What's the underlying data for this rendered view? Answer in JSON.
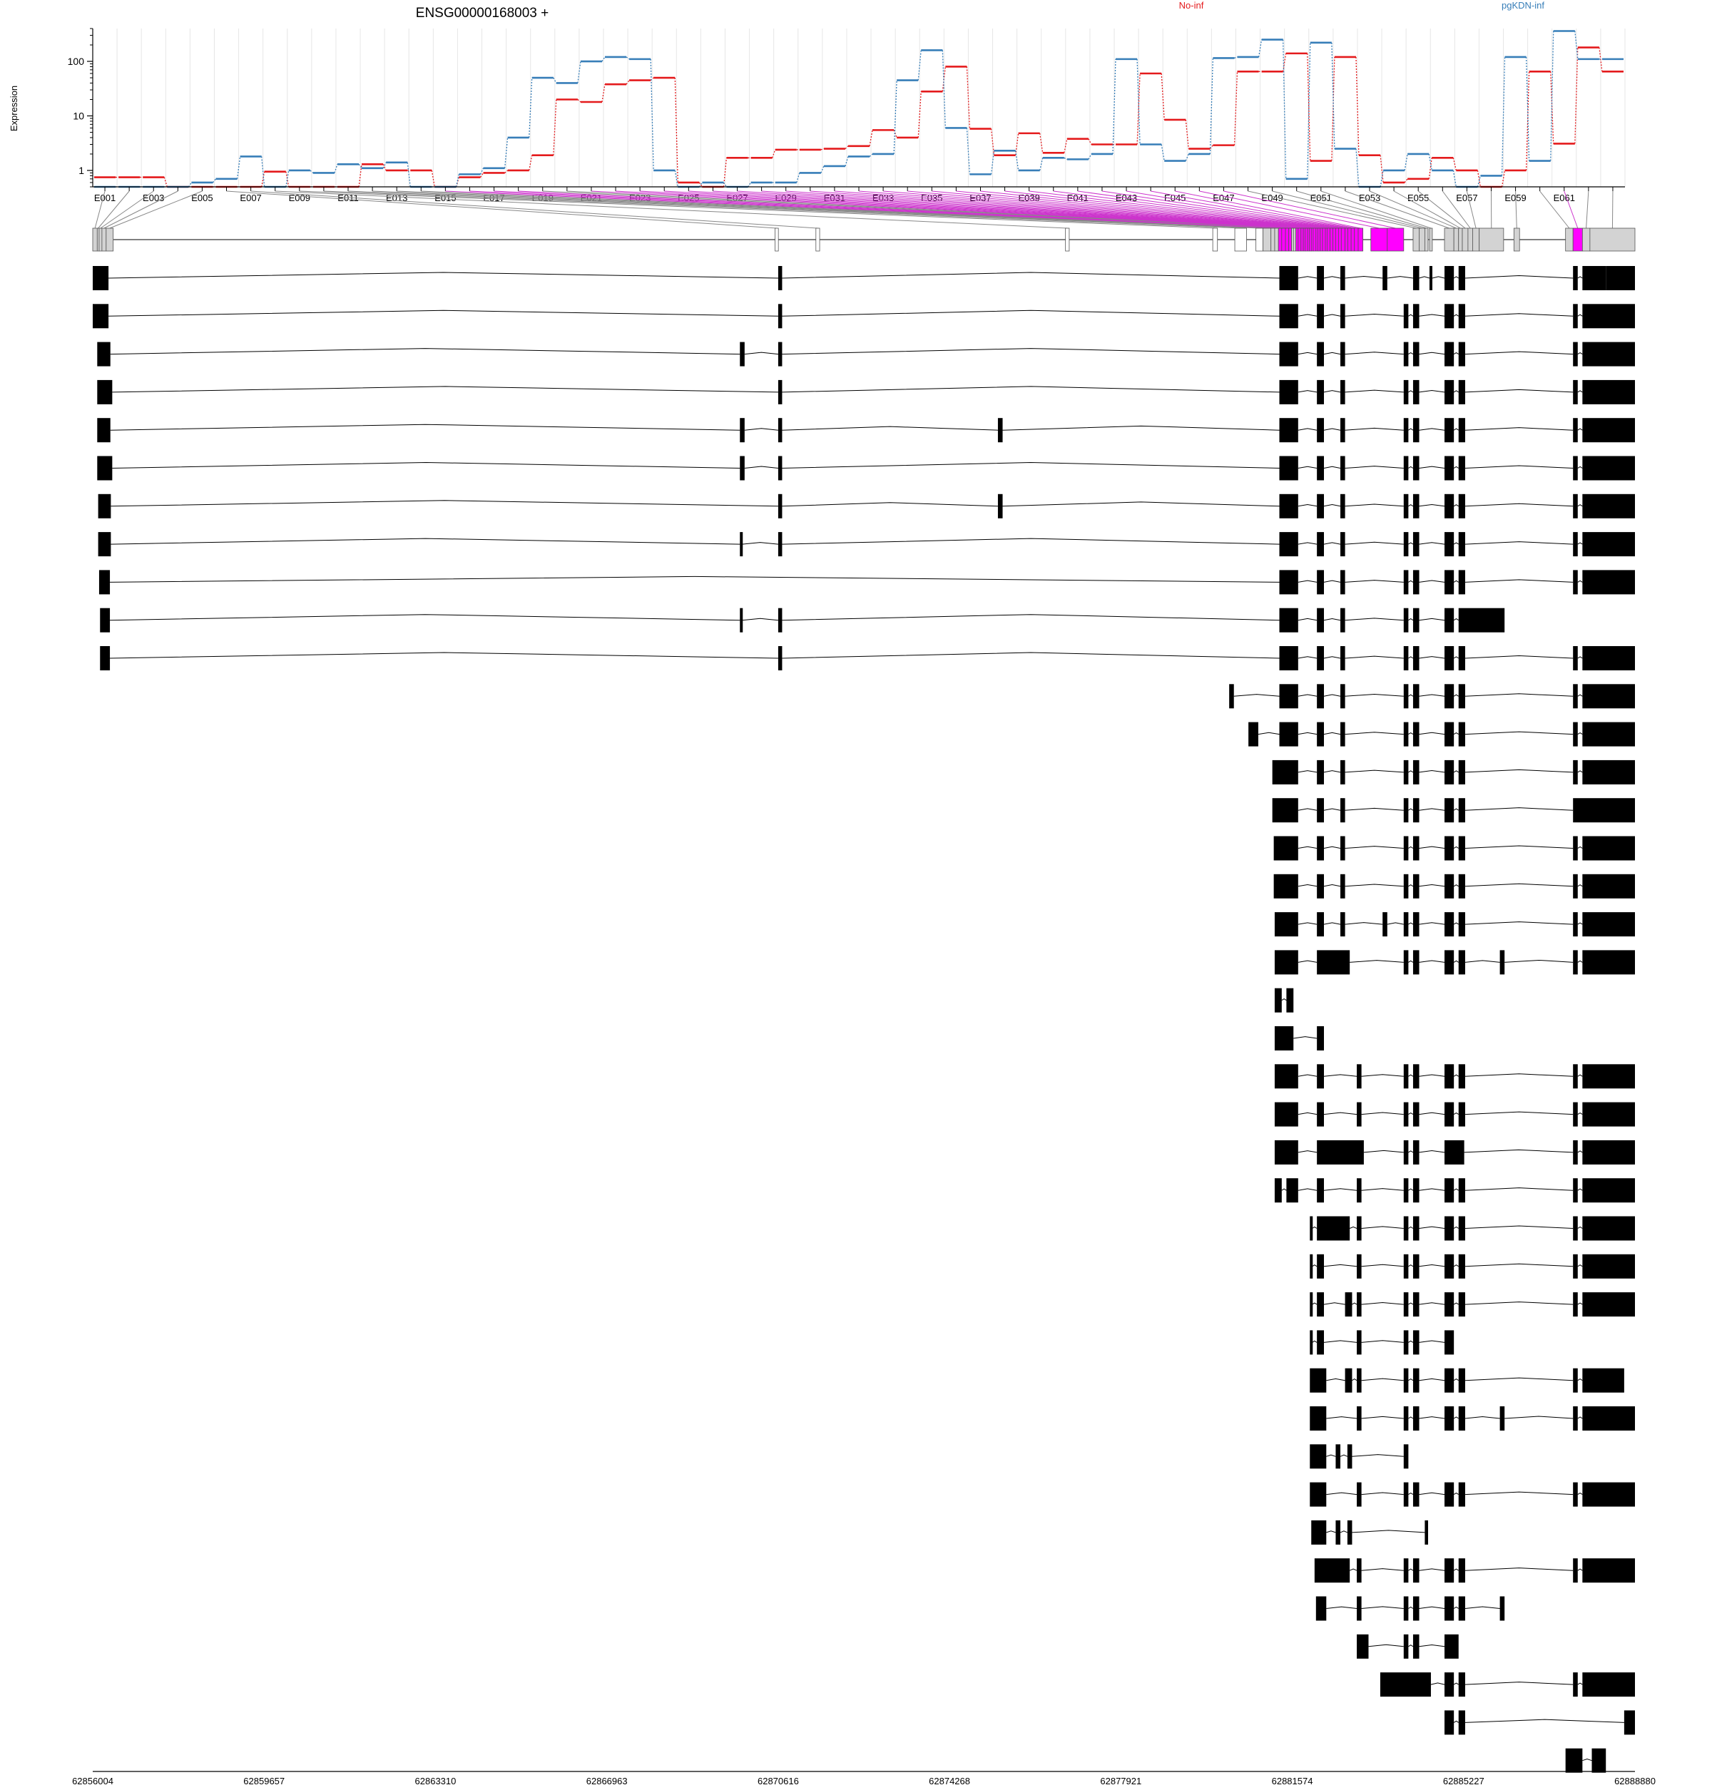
{
  "chart_data": {
    "type": "line",
    "title": "ENSG00000168003 +",
    "ylabel": "Expression",
    "y_scale": "log",
    "ylim": [
      0.5,
      400
    ],
    "y_ticks": [
      1,
      10,
      100
    ],
    "y_tick_labels": [
      "1",
      "10",
      "100"
    ],
    "exon_labels": [
      "E001",
      "E003",
      "E005",
      "E007",
      "E009",
      "E011",
      "E013",
      "E015",
      "E017",
      "E019",
      "E021",
      "E023",
      "E025",
      "E027",
      "E029",
      "E031",
      "E033",
      "E035",
      "E037",
      "E039",
      "E041",
      "E043",
      "E045",
      "E047",
      "E049",
      "E051",
      "E053",
      "E055",
      "E057",
      "E059",
      "E061"
    ],
    "series": [
      {
        "name": "No-inf",
        "color": "#e41a1c",
        "values": [
          0.75,
          0.75,
          0.75,
          0.5,
          0.5,
          0.5,
          0.5,
          0.95,
          0.5,
          0.5,
          0.5,
          1.3,
          1.0,
          1.0,
          0.5,
          0.75,
          0.9,
          1.0,
          1.9,
          20,
          18,
          38,
          45,
          50,
          0.6,
          0.5,
          1.7,
          1.7,
          2.4,
          2.4,
          2.5,
          2.8,
          5.5,
          4.0,
          28,
          80,
          5.8,
          1.9,
          4.8,
          2.1,
          3.8,
          3.0,
          3.0,
          60,
          8.5,
          2.5,
          2.9,
          65,
          65,
          140,
          1.5,
          120,
          1.9,
          0.6,
          0.7,
          1.7,
          1.0,
          0.5,
          1.0,
          65,
          3.1,
          180,
          65
        ]
      },
      {
        "name": "pgKDN-inf",
        "color": "#377eb8",
        "values": [
          0.5,
          0.5,
          0.5,
          0.5,
          0.6,
          0.7,
          1.8,
          0.5,
          1.0,
          0.9,
          1.3,
          1.1,
          1.4,
          0.5,
          0.5,
          0.85,
          1.1,
          4.0,
          50,
          40,
          100,
          120,
          110,
          1.0,
          0.5,
          0.6,
          0.5,
          0.6,
          0.6,
          0.9,
          1.2,
          1.8,
          2.0,
          45,
          160,
          6.0,
          0.85,
          2.3,
          1.0,
          1.7,
          1.6,
          2.0,
          110,
          3.0,
          1.5,
          2.0,
          115,
          120,
          250,
          0.7,
          220,
          2.5,
          0.5,
          1.0,
          2.0,
          1.0,
          0.5,
          0.8,
          120,
          1.5,
          360,
          110,
          110
        ]
      }
    ],
    "legend": [
      "No-inf",
      "pgKDN-inf"
    ],
    "legend_position": "top-right",
    "x_axis_ticks": [
      "62856004",
      "62859657",
      "62863310",
      "62866963",
      "62870616",
      "62874268",
      "62877921",
      "62881574",
      "62885227",
      "62888880"
    ]
  },
  "colors": {
    "highlight": "#ff00ff",
    "exon_fill": "#d3d3d3",
    "feature": "#000000",
    "grid": "#e6e6e6"
  }
}
